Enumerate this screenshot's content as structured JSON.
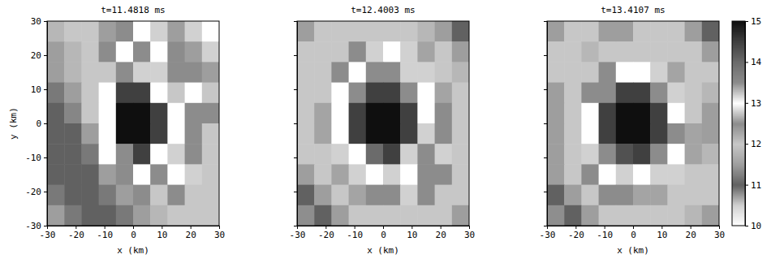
{
  "chart_data": [
    {
      "type": "heatmap",
      "title": "t=11.4818 ms",
      "xlabel": "x (km)",
      "ylabel": "y (km)",
      "xlim": [
        -30,
        30
      ],
      "ylim": [
        -30,
        30
      ],
      "xticks": [
        -30,
        -20,
        -10,
        0,
        10,
        20,
        30
      ],
      "yticks": [
        -30,
        -20,
        -10,
        0,
        10,
        20,
        30
      ],
      "x": [
        -27,
        -21,
        -15,
        -9,
        -3,
        3,
        9,
        15,
        21,
        27
      ],
      "y": [
        27,
        21,
        15,
        9,
        3,
        -3,
        -9,
        -15,
        -21,
        -27
      ],
      "cells": [
        [
          11.8,
          12,
          12,
          11.5,
          12.5,
          13,
          12.8,
          11.5,
          10.5,
          10
        ],
        [
          11.5,
          11.8,
          12,
          12.5,
          13,
          13.5,
          13,
          12.5,
          11.5,
          10.5
        ],
        [
          11.5,
          11.8,
          12,
          12,
          12.5,
          13.2,
          12.8,
          13.5,
          12.5,
          11.5
        ],
        [
          11.2,
          11.5,
          12,
          13,
          14.5,
          14.5,
          13,
          12,
          13,
          12
        ],
        [
          11,
          11.3,
          12,
          13,
          15,
          15,
          14.5,
          13,
          12.5,
          12.5
        ],
        [
          11,
          11,
          11.5,
          13,
          15,
          15,
          14.5,
          13,
          13.5,
          12
        ],
        [
          11,
          11,
          11.2,
          13,
          13.5,
          14.5,
          13,
          12.8,
          13.5,
          12
        ],
        [
          11,
          11,
          11,
          11.5,
          12.5,
          13,
          12.5,
          13,
          12.8,
          12
        ],
        [
          11.2,
          11,
          11,
          11.2,
          11.5,
          12.5,
          12,
          12.5,
          12,
          12
        ],
        [
          11.5,
          11.2,
          11,
          11,
          11.2,
          11.5,
          11.8,
          12,
          12,
          12
        ]
      ]
    },
    {
      "type": "heatmap",
      "title": "t=12.4003 ms",
      "xlabel": "x (km)",
      "tick_labels": "x",
      "xlim": [
        -30,
        30
      ],
      "ylim": [
        -30,
        30
      ],
      "xticks": [
        -30,
        -20,
        -10,
        0,
        10,
        20,
        30
      ],
      "yticks": [
        -30,
        -20,
        -10,
        0,
        10,
        20,
        30
      ],
      "x": [
        -27,
        -21,
        -15,
        -9,
        -3,
        3,
        9,
        15,
        21,
        27
      ],
      "y": [
        27,
        21,
        15,
        9,
        3,
        -3,
        -9,
        -15,
        -21,
        -27
      ],
      "cells": [
        [
          11.5,
          12,
          12,
          12,
          12,
          12,
          12,
          11.8,
          11.5,
          11
        ],
        [
          12,
          12,
          12,
          12.5,
          12.8,
          13,
          12.8,
          12.3,
          12,
          11.5
        ],
        [
          12,
          12,
          12.5,
          13,
          13.5,
          13.5,
          13.2,
          12.8,
          12,
          11.8
        ],
        [
          12,
          12,
          13,
          13.5,
          14.5,
          14.5,
          13.5,
          13,
          12.3,
          12
        ],
        [
          12,
          12.3,
          13,
          14.5,
          15,
          15,
          14.5,
          13,
          12.5,
          12
        ],
        [
          12,
          12.3,
          13,
          14.5,
          15,
          15,
          14.5,
          13.2,
          12.5,
          12
        ],
        [
          12,
          12,
          12.8,
          13,
          14,
          14.5,
          13.2,
          13.5,
          12.8,
          12
        ],
        [
          11.5,
          12,
          12.3,
          12.8,
          13,
          13.2,
          13,
          13.5,
          12.5,
          12
        ],
        [
          11,
          11.5,
          12,
          12.3,
          12.5,
          12.5,
          12.8,
          12.5,
          12,
          12
        ],
        [
          10.8,
          11,
          11.5,
          12,
          12,
          12,
          12,
          12,
          12,
          11.5
        ]
      ]
    },
    {
      "type": "heatmap",
      "title": "t=13.4107 ms",
      "xlabel": "x (km)",
      "tick_labels": "x",
      "xlim": [
        -30,
        30
      ],
      "ylim": [
        -30,
        30
      ],
      "xticks": [
        -30,
        -20,
        -10,
        0,
        10,
        20,
        30
      ],
      "yticks": [
        -30,
        -20,
        -10,
        0,
        10,
        20,
        30
      ],
      "x": [
        -27,
        -21,
        -15,
        -9,
        -3,
        3,
        9,
        15,
        21,
        27
      ],
      "y": [
        27,
        21,
        15,
        9,
        3,
        -3,
        -9,
        -15,
        -21,
        -27
      ],
      "cells": [
        [
          11.5,
          12,
          12,
          11.5,
          11.5,
          12,
          12,
          12,
          11.5,
          11
        ],
        [
          12,
          12,
          11.8,
          12,
          12,
          12,
          12,
          12,
          12,
          11.5
        ],
        [
          12,
          12,
          12,
          12.5,
          13,
          13,
          12.8,
          12.3,
          12,
          12
        ],
        [
          11.5,
          12,
          12.5,
          13.5,
          14.5,
          14.5,
          13.5,
          12.8,
          12,
          11.8
        ],
        [
          11.5,
          12,
          13,
          14.5,
          15,
          15,
          14.5,
          13,
          12,
          11.5
        ],
        [
          11.5,
          12,
          13,
          14.5,
          15,
          15,
          14.5,
          13.5,
          12.3,
          11.5
        ],
        [
          11.5,
          12,
          12.8,
          13.5,
          14.3,
          14.5,
          13.5,
          13,
          12.3,
          11.8
        ],
        [
          11.5,
          12,
          12.5,
          13,
          13.2,
          13,
          12.8,
          12.8,
          12,
          12
        ],
        [
          11,
          11.5,
          12,
          12.5,
          12.5,
          12.3,
          12.3,
          12,
          12,
          12
        ],
        [
          10.8,
          11,
          11.5,
          12,
          12,
          12,
          12,
          12,
          11.8,
          11.5
        ]
      ],
      "colorbar": {
        "range": [
          10,
          15
        ],
        "ticks": [
          10,
          11,
          12,
          13,
          14,
          15
        ]
      }
    }
  ]
}
